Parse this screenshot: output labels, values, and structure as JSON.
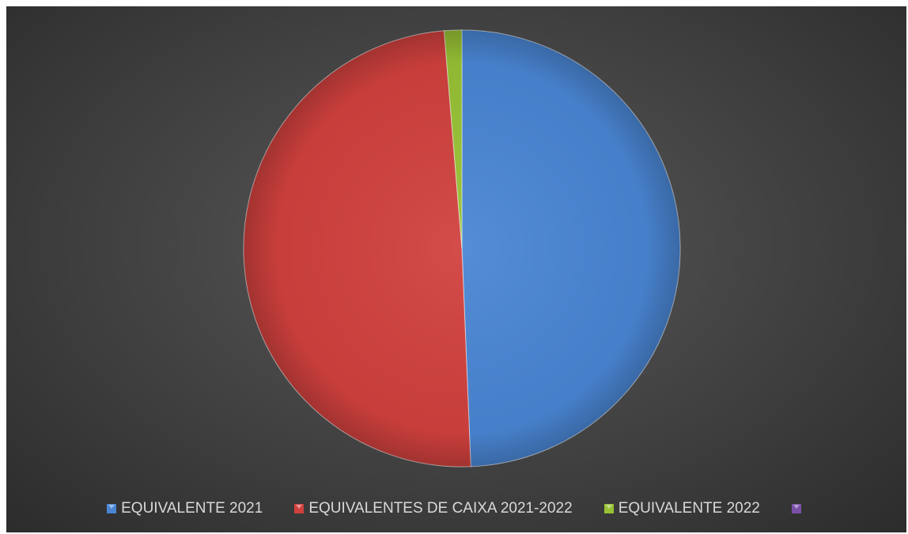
{
  "chart_data": {
    "type": "pie",
    "series": [
      {
        "values": [
          49.35,
          49.35,
          1.3,
          0
        ]
      }
    ],
    "categories": [
      "EQUIVALENTE 2021",
      "EQUIVALENTES DE CAIXA 2021-2022",
      "EQUIVALENTE 2022",
      ""
    ],
    "colors": [
      "#4a86d4",
      "#d1413e",
      "#98c235",
      "#7a4fa6"
    ],
    "legend_position": "bottom"
  }
}
